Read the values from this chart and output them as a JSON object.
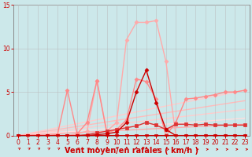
{
  "background_color": "#cce8ea",
  "grid_color": "#aaaaaa",
  "xlabel": "Vent moyen/en rafales ( km/h )",
  "xlim": [
    -0.5,
    23.5
  ],
  "ylim": [
    0,
    15
  ],
  "xticks": [
    0,
    1,
    2,
    3,
    4,
    5,
    6,
    7,
    8,
    9,
    10,
    11,
    12,
    13,
    14,
    15,
    16,
    17,
    18,
    19,
    20,
    21,
    22,
    23
  ],
  "yticks": [
    0,
    5,
    10,
    15
  ],
  "series": [
    {
      "x": [
        0,
        1,
        2,
        3,
        4,
        5,
        6,
        7,
        8,
        9,
        10,
        11,
        12,
        13,
        14,
        15,
        16,
        17,
        18,
        19,
        20,
        21,
        22,
        23
      ],
      "y": [
        0,
        0,
        0,
        0,
        0,
        0,
        0,
        0,
        0,
        0,
        0,
        0,
        0,
        0,
        0,
        0,
        0,
        0,
        0,
        0,
        0,
        0,
        0,
        0
      ],
      "color": "#cc0000",
      "linewidth": 2.2,
      "marker": "s",
      "markersize": 2.5,
      "zorder": 6
    },
    {
      "x": [
        0,
        1,
        2,
        3,
        4,
        5,
        6,
        7,
        8,
        9,
        10,
        11,
        12,
        13,
        14,
        15,
        16,
        17,
        18,
        19,
        20,
        21,
        22,
        23
      ],
      "y": [
        0,
        0,
        0,
        0,
        0,
        0,
        0,
        0.1,
        0.3,
        0.5,
        0.7,
        0.9,
        1.1,
        1.5,
        1.2,
        0.7,
        1.3,
        1.3,
        1.2,
        1.3,
        1.2,
        1.2,
        1.2,
        1.2
      ],
      "color": "#dd3333",
      "linewidth": 1.0,
      "marker": "s",
      "markersize": 2.5,
      "zorder": 5
    },
    {
      "x": [
        0,
        1,
        2,
        3,
        4,
        5,
        6,
        7,
        8,
        9,
        10,
        11,
        12,
        13,
        14,
        15,
        16,
        17,
        18,
        19,
        20,
        21,
        22,
        23
      ],
      "y": [
        0,
        0,
        0,
        0,
        0,
        0,
        0,
        0,
        0.1,
        0.2,
        0.4,
        1.5,
        5.0,
        7.5,
        3.8,
        0.7,
        0.0,
        0.0,
        0.0,
        0.0,
        0.0,
        0.0,
        0.0,
        0.0
      ],
      "color": "#cc0000",
      "linewidth": 1.0,
      "marker": "D",
      "markersize": 2.5,
      "zorder": 5
    },
    {
      "x": [
        0,
        1,
        2,
        3,
        4,
        5,
        6,
        7,
        8,
        9,
        10,
        11,
        12,
        13,
        14,
        15,
        16,
        17,
        18,
        19,
        20,
        21,
        22,
        23
      ],
      "y": [
        0,
        0,
        0,
        0,
        0,
        0,
        0.2,
        0.5,
        6.3,
        0.5,
        1.5,
        11.0,
        13.0,
        13.0,
        13.2,
        8.5,
        0,
        0,
        0,
        0,
        0,
        0,
        0,
        0
      ],
      "color": "#ffaaaa",
      "linewidth": 1.0,
      "marker": "D",
      "markersize": 2.5,
      "zorder": 3
    },
    {
      "x": [
        0,
        1,
        2,
        3,
        4,
        5,
        6,
        7,
        8,
        9,
        10,
        11,
        12,
        13,
        14,
        15,
        16,
        17,
        18,
        19,
        20,
        21,
        22,
        23
      ],
      "y": [
        0,
        0,
        0,
        0,
        0.1,
        5.2,
        0.2,
        1.5,
        6.3,
        0.3,
        0.7,
        1.8,
        6.5,
        6.2,
        4.2,
        0.0,
        1.5,
        4.2,
        4.3,
        4.5,
        4.7,
        5.0,
        5.0,
        5.2
      ],
      "color": "#ff8888",
      "linewidth": 1.0,
      "marker": "D",
      "markersize": 2.5,
      "zorder": 4
    },
    {
      "x": [
        0,
        23
      ],
      "y": [
        0,
        5.2
      ],
      "color": "#ffcccc",
      "linewidth": 1.0,
      "marker": null,
      "markersize": 0,
      "zorder": 2
    },
    {
      "x": [
        0,
        23
      ],
      "y": [
        0,
        4.0
      ],
      "color": "#ffbbbb",
      "linewidth": 1.0,
      "marker": null,
      "markersize": 0,
      "zorder": 2
    },
    {
      "x": [
        0,
        23
      ],
      "y": [
        0,
        3.0
      ],
      "color": "#ffcccc",
      "linewidth": 1.0,
      "marker": null,
      "markersize": 0,
      "zorder": 2
    },
    {
      "x": [
        0,
        23
      ],
      "y": [
        0,
        2.0
      ],
      "color": "#ffdddd",
      "linewidth": 1.0,
      "marker": null,
      "markersize": 0,
      "zorder": 2
    },
    {
      "x": [
        0,
        23
      ],
      "y": [
        0,
        1.3
      ],
      "color": "#ffaaaa",
      "linewidth": 1.0,
      "marker": null,
      "markersize": 0,
      "zorder": 2
    }
  ],
  "tick_color": "#cc0000",
  "xlabel_color": "#cc0000",
  "xlabel_fontsize": 7,
  "tick_fontsize": 5.5
}
